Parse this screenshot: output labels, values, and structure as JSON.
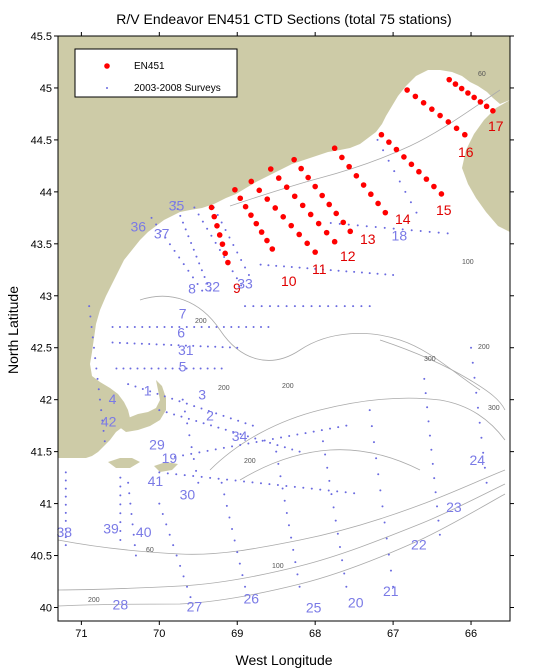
{
  "title": "R/V Endeavor EN451 CTD Sections (total 75 stations)",
  "x_axis": {
    "label": "West Longitude",
    "ticks": [
      "71",
      "70",
      "69",
      "68",
      "67",
      "66"
    ],
    "range": [
      71.3,
      65.5
    ]
  },
  "y_axis": {
    "label": "North Latitude",
    "ticks": [
      "40",
      "40.5",
      "41",
      "41.5",
      "42",
      "42.5",
      "43",
      "43.5",
      "44",
      "44.5",
      "45",
      "45.5"
    ],
    "range": [
      39.87,
      45.5
    ]
  },
  "legend": {
    "items": [
      {
        "label": "EN451",
        "color": "#ff0000",
        "marker": "large-dot"
      },
      {
        "label": "2003-2008 Surveys",
        "color": "#6a6ae0",
        "marker": "small-dot"
      }
    ]
  },
  "colors": {
    "land": "#cdcba7",
    "en451": "#ff0000",
    "surveys": "#6a6ae0",
    "survey_labels": "#7a7ae6",
    "contour": "#aaaaaa"
  },
  "contour_labels": [
    "60",
    "100",
    "200",
    "300",
    "200",
    "200",
    "200",
    "200",
    "100",
    "60",
    "200",
    "300"
  ],
  "chart_data": {
    "type": "scatter",
    "title": "R/V Endeavor EN451 CTD Sections (total 75 stations)",
    "xlabel": "West Longitude",
    "ylabel": "North Latitude",
    "xlim": [
      71.3,
      65.5
    ],
    "ylim": [
      39.87,
      45.5
    ],
    "series": [
      {
        "name": "EN451",
        "sections": [
          {
            "label": "9",
            "start": [
              69.33,
              43.85
            ],
            "end": [
              69.12,
              43.32
            ],
            "n": 7
          },
          {
            "label": "10",
            "start": [
              69.03,
              44.02
            ],
            "end": [
              68.55,
              43.45
            ],
            "n": 8
          },
          {
            "label": "11",
            "start": [
              68.82,
              44.1
            ],
            "end": [
              68.0,
              43.42
            ],
            "n": 9
          },
          {
            "label": "12",
            "start": [
              68.57,
              44.22
            ],
            "end": [
              67.75,
              43.52
            ],
            "n": 9
          },
          {
            "label": "13",
            "start": [
              68.27,
              44.31
            ],
            "end": [
              67.55,
              43.62
            ],
            "n": 9
          },
          {
            "label": "14",
            "start": [
              67.75,
              44.42
            ],
            "end": [
              67.1,
              43.8
            ],
            "n": 8
          },
          {
            "label": "15",
            "start": [
              67.15,
              44.55
            ],
            "end": [
              66.38,
              43.98
            ],
            "n": 9
          },
          {
            "label": "16",
            "start": [
              66.82,
              44.98
            ],
            "end": [
              66.08,
              44.55
            ],
            "n": 8
          },
          {
            "label": "17",
            "start": [
              66.28,
              45.08
            ],
            "end": [
              65.72,
              44.78
            ],
            "n": 8
          }
        ]
      },
      {
        "name": "2003-2008 Surveys"
      }
    ],
    "survey_labels": [
      {
        "text": "35",
        "lon": 69.78,
        "lat": 43.82
      },
      {
        "text": "36",
        "lon": 70.27,
        "lat": 43.62
      },
      {
        "text": "37",
        "lon": 69.97,
        "lat": 43.55
      },
      {
        "text": "8",
        "lon": 69.58,
        "lat": 43.02
      },
      {
        "text": "32",
        "lon": 69.32,
        "lat": 43.04
      },
      {
        "text": "33",
        "lon": 68.9,
        "lat": 43.07
      },
      {
        "text": "7",
        "lon": 69.7,
        "lat": 42.78
      },
      {
        "text": "6",
        "lon": 69.72,
        "lat": 42.6
      },
      {
        "text": "31",
        "lon": 69.66,
        "lat": 42.43
      },
      {
        "text": "5",
        "lon": 69.7,
        "lat": 42.27
      },
      {
        "text": "4",
        "lon": 70.6,
        "lat": 41.96
      },
      {
        "text": "1",
        "lon": 70.15,
        "lat": 42.04
      },
      {
        "text": "3",
        "lon": 69.45,
        "lat": 42.0
      },
      {
        "text": "42",
        "lon": 70.65,
        "lat": 41.74
      },
      {
        "text": "2",
        "lon": 69.35,
        "lat": 41.8
      },
      {
        "text": "34",
        "lon": 68.97,
        "lat": 41.6
      },
      {
        "text": "29",
        "lon": 70.03,
        "lat": 41.52
      },
      {
        "text": "19",
        "lon": 69.87,
        "lat": 41.39
      },
      {
        "text": "41",
        "lon": 70.05,
        "lat": 41.17
      },
      {
        "text": "30",
        "lon": 69.64,
        "lat": 41.04
      },
      {
        "text": "24",
        "lon": 65.92,
        "lat": 41.37
      },
      {
        "text": "23",
        "lon": 66.22,
        "lat": 40.92
      },
      {
        "text": "22",
        "lon": 66.67,
        "lat": 40.56
      },
      {
        "text": "38",
        "lon": 71.22,
        "lat": 40.68
      },
      {
        "text": "39",
        "lon": 70.62,
        "lat": 40.71
      },
      {
        "text": "40",
        "lon": 70.2,
        "lat": 40.68
      },
      {
        "text": "21",
        "lon": 67.03,
        "lat": 40.11
      },
      {
        "text": "28",
        "lon": 70.5,
        "lat": 39.98
      },
      {
        "text": "27",
        "lon": 69.55,
        "lat": 39.96
      },
      {
        "text": "26",
        "lon": 68.82,
        "lat": 40.04
      },
      {
        "text": "20",
        "lon": 67.48,
        "lat": 40.0
      },
      {
        "text": "25",
        "lon": 68.02,
        "lat": 39.95
      },
      {
        "text": "18",
        "lon": 66.92,
        "lat": 43.53
      }
    ]
  }
}
